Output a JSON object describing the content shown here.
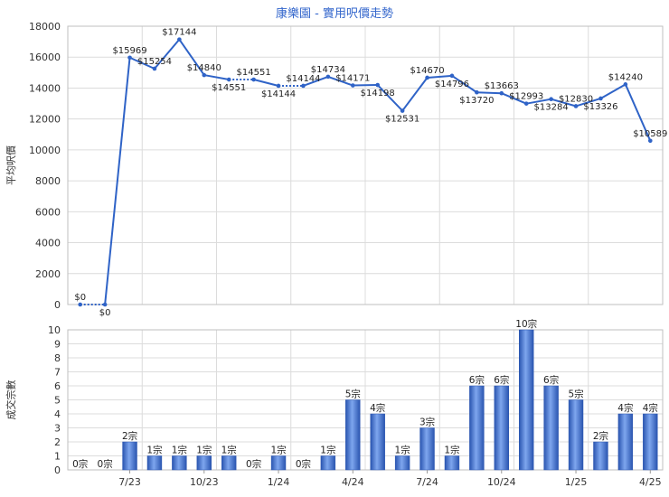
{
  "chart_data": [
    {
      "type": "line",
      "title": "康樂園 - 實用呎價走勢",
      "ylabel": "平均呎價",
      "ylim": [
        0,
        18000
      ],
      "yticks": [
        0,
        2000,
        4000,
        6000,
        8000,
        10000,
        12000,
        14000,
        16000,
        18000
      ],
      "grid": true,
      "line_color": "#2f63c7",
      "title_color": "#3366cc",
      "series": [
        {
          "values": [
            0,
            0,
            15969,
            15254,
            17144,
            14840,
            14551,
            14551,
            14144,
            14144,
            14734,
            14171,
            14198,
            12531,
            14670,
            14796,
            13720,
            13663,
            12993,
            13284,
            12830,
            13326,
            14240,
            10589
          ],
          "labels": [
            "$0",
            "$0",
            "$15969",
            "$15254",
            "$17144",
            "$14840",
            "$14551",
            "$14551",
            "$14144",
            "$14144",
            "$14734",
            "$14171",
            "$14198",
            "$12531",
            "$14670",
            "$14796",
            "$13720",
            "$13663",
            "$12993",
            "$13284",
            "$12830",
            "$13326",
            "$14240",
            "$10589"
          ]
        }
      ]
    },
    {
      "type": "bar",
      "ylabel": "成交宗數",
      "ylim": [
        0,
        10
      ],
      "yticks": [
        0,
        1,
        2,
        3,
        4,
        5,
        6,
        7,
        8,
        9,
        10
      ],
      "grid": true,
      "bar_color": "#3b6fcf",
      "x_tick_labels": [
        "7/23",
        "10/23",
        "1/24",
        "4/24",
        "7/24",
        "10/24",
        "1/25",
        "4/25"
      ],
      "series": [
        {
          "values": [
            0,
            0,
            2,
            1,
            1,
            1,
            1,
            0,
            1,
            0,
            1,
            5,
            4,
            1,
            3,
            1,
            6,
            6,
            10,
            6,
            5,
            2,
            4,
            4
          ],
          "labels": [
            "0宗",
            "0宗",
            "2宗",
            "1宗",
            "1宗",
            "1宗",
            "1宗",
            "0宗",
            "1宗",
            "0宗",
            "1宗",
            "5宗",
            "4宗",
            "1宗",
            "3宗",
            "1宗",
            "6宗",
            "6宗",
            "10宗",
            "6宗",
            "5宗",
            "2宗",
            "4宗",
            "4宗"
          ]
        }
      ]
    }
  ]
}
